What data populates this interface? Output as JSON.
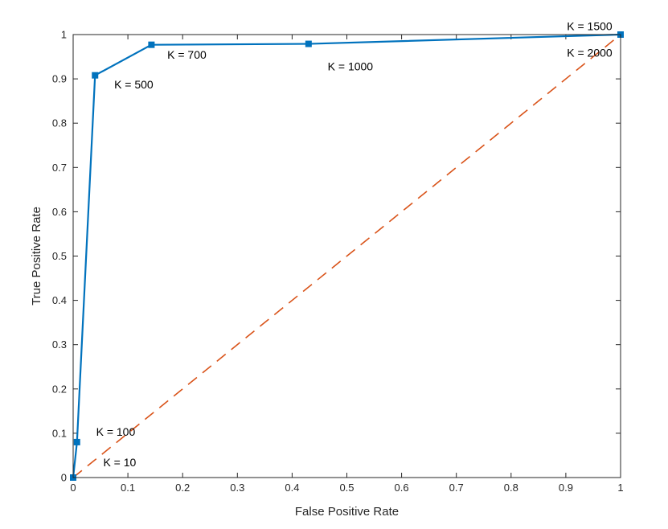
{
  "chart_data": {
    "type": "line",
    "title": "",
    "xlabel": "False Positive Rate",
    "ylabel": "True Positive Rate",
    "xlim": [
      0,
      1
    ],
    "ylim": [
      0,
      1
    ],
    "xticks": [
      "0",
      "0.1",
      "0.2",
      "0.3",
      "0.4",
      "0.5",
      "0.6",
      "0.7",
      "0.8",
      "0.9",
      "1"
    ],
    "yticks": [
      "0",
      "0.1",
      "0.2",
      "0.3",
      "0.4",
      "0.5",
      "0.6",
      "0.7",
      "0.8",
      "0.9",
      "1"
    ],
    "grid": false,
    "series": [
      {
        "style": "solid",
        "marker": "square",
        "color": "#0072BD",
        "x": [
          0,
          0.007,
          0.04,
          0.143,
          0.43,
          1.0
        ],
        "y": [
          0,
          0.08,
          0.908,
          0.977,
          0.979,
          1.0
        ]
      },
      {
        "style": "dashed",
        "color": "#D95319",
        "x": [
          0,
          1
        ],
        "y": [
          0,
          1
        ]
      }
    ],
    "annotations": [
      {
        "text": "K = 10",
        "x": 0.055,
        "y": 0.025
      },
      {
        "text": "K = 100",
        "x": 0.042,
        "y": 0.094
      },
      {
        "text": "K = 500",
        "x": 0.075,
        "y": 0.878
      },
      {
        "text": "K = 700",
        "x": 0.172,
        "y": 0.946
      },
      {
        "text": "K = 1000",
        "x": 0.465,
        "y": 0.919
      },
      {
        "text": "K = 1500",
        "x": 0.902,
        "y": 1.01
      },
      {
        "text": "K = 2000",
        "x": 0.902,
        "y": 0.95
      }
    ]
  }
}
